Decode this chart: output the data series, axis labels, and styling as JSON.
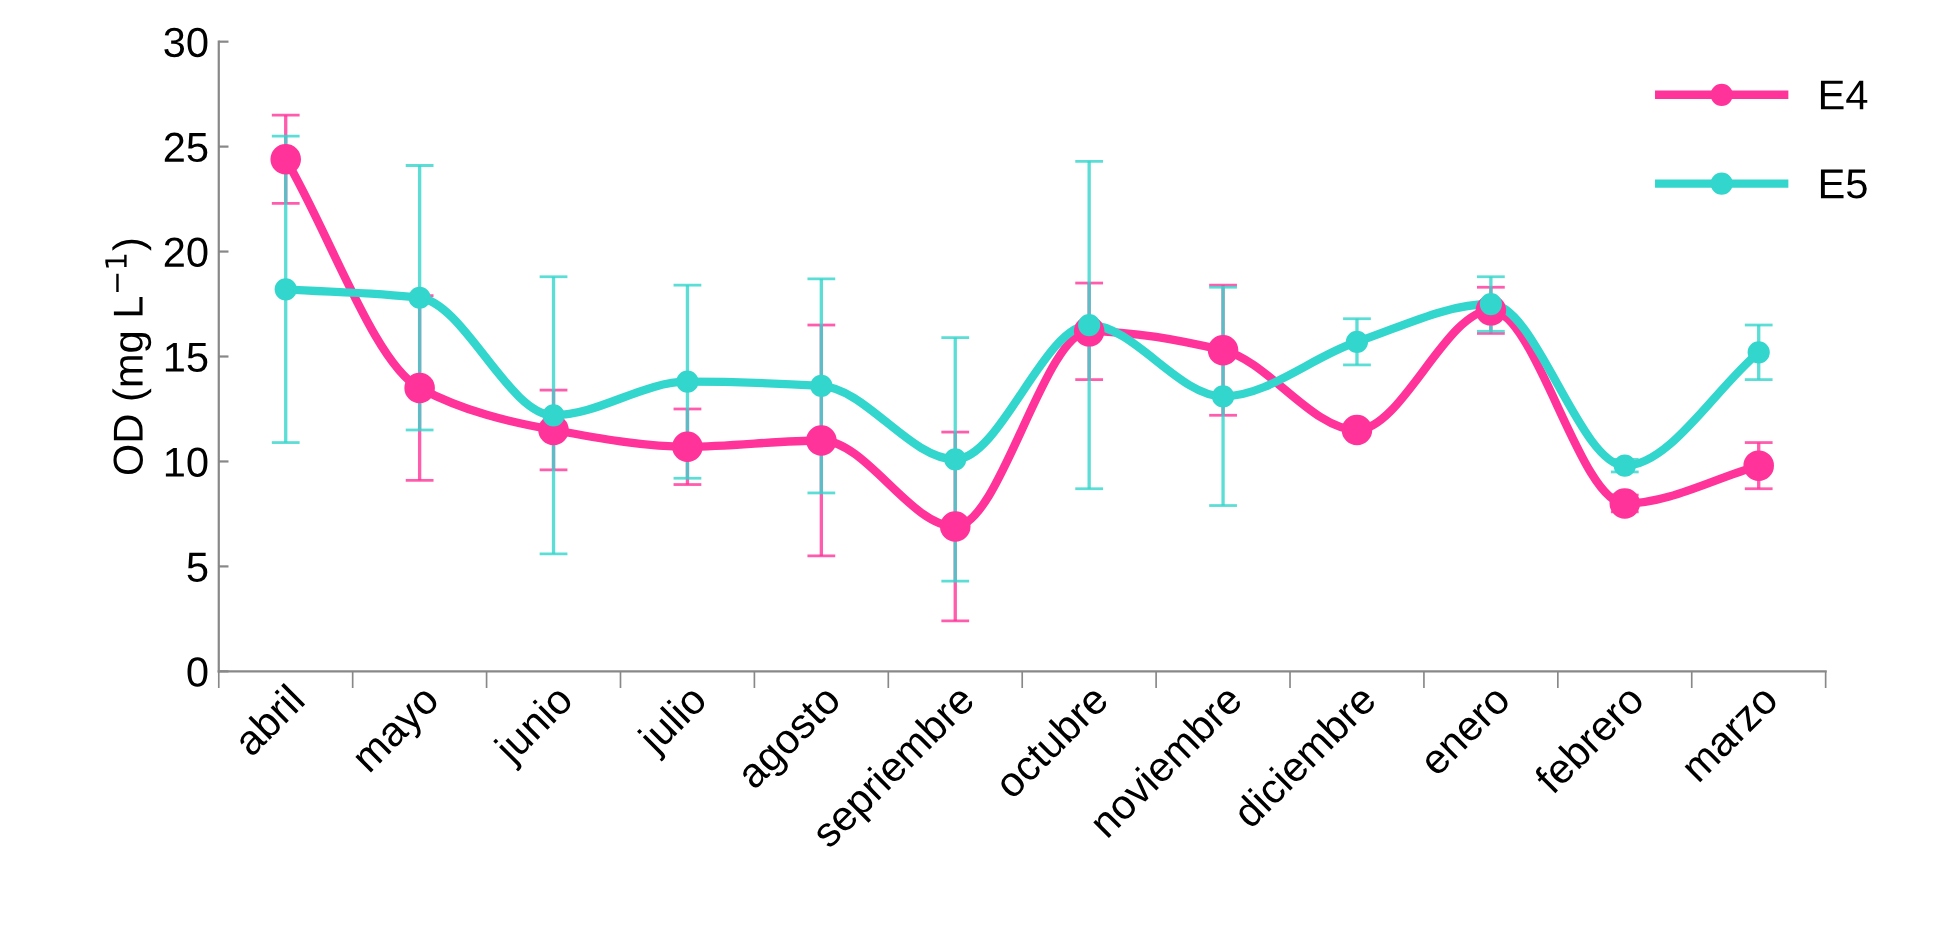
{
  "chart_data": {
    "type": "line",
    "ylabel": "OD (mg L$^{−1}$)",
    "categories": [
      "abril",
      "mayo",
      "junio",
      "julio",
      "agosto",
      "sepriembre",
      "octubre",
      "noviembre",
      "diciembre",
      "enero",
      "febrero",
      "marzo"
    ],
    "series": [
      {
        "name": "E4",
        "color": "#ff3399",
        "values": [
          24.4,
          13.5,
          11.5,
          10.7,
          11.0,
          6.9,
          16.2,
          15.3,
          11.5,
          17.2,
          8.0,
          9.8
        ],
        "errors": [
          2.1,
          4.4,
          1.9,
          1.8,
          5.5,
          4.5,
          2.3,
          3.1,
          0.2,
          1.1,
          0.4,
          1.1
        ]
      },
      {
        "name": "E5",
        "color": "#33d6cc",
        "values": [
          18.2,
          17.8,
          12.2,
          13.8,
          13.6,
          10.1,
          16.5,
          13.1,
          15.7,
          17.5,
          9.8,
          15.2
        ],
        "errors": [
          7.3,
          6.3,
          6.6,
          4.6,
          5.1,
          5.8,
          7.8,
          5.2,
          1.1,
          1.3,
          0.3,
          1.3
        ]
      }
    ],
    "ylim": [
      0,
      30
    ],
    "yticks": [
      0,
      5,
      10,
      15,
      20,
      25,
      30
    ],
    "grid": false,
    "legend": "top right",
    "marker": "circle",
    "line_style": "solid"
  }
}
